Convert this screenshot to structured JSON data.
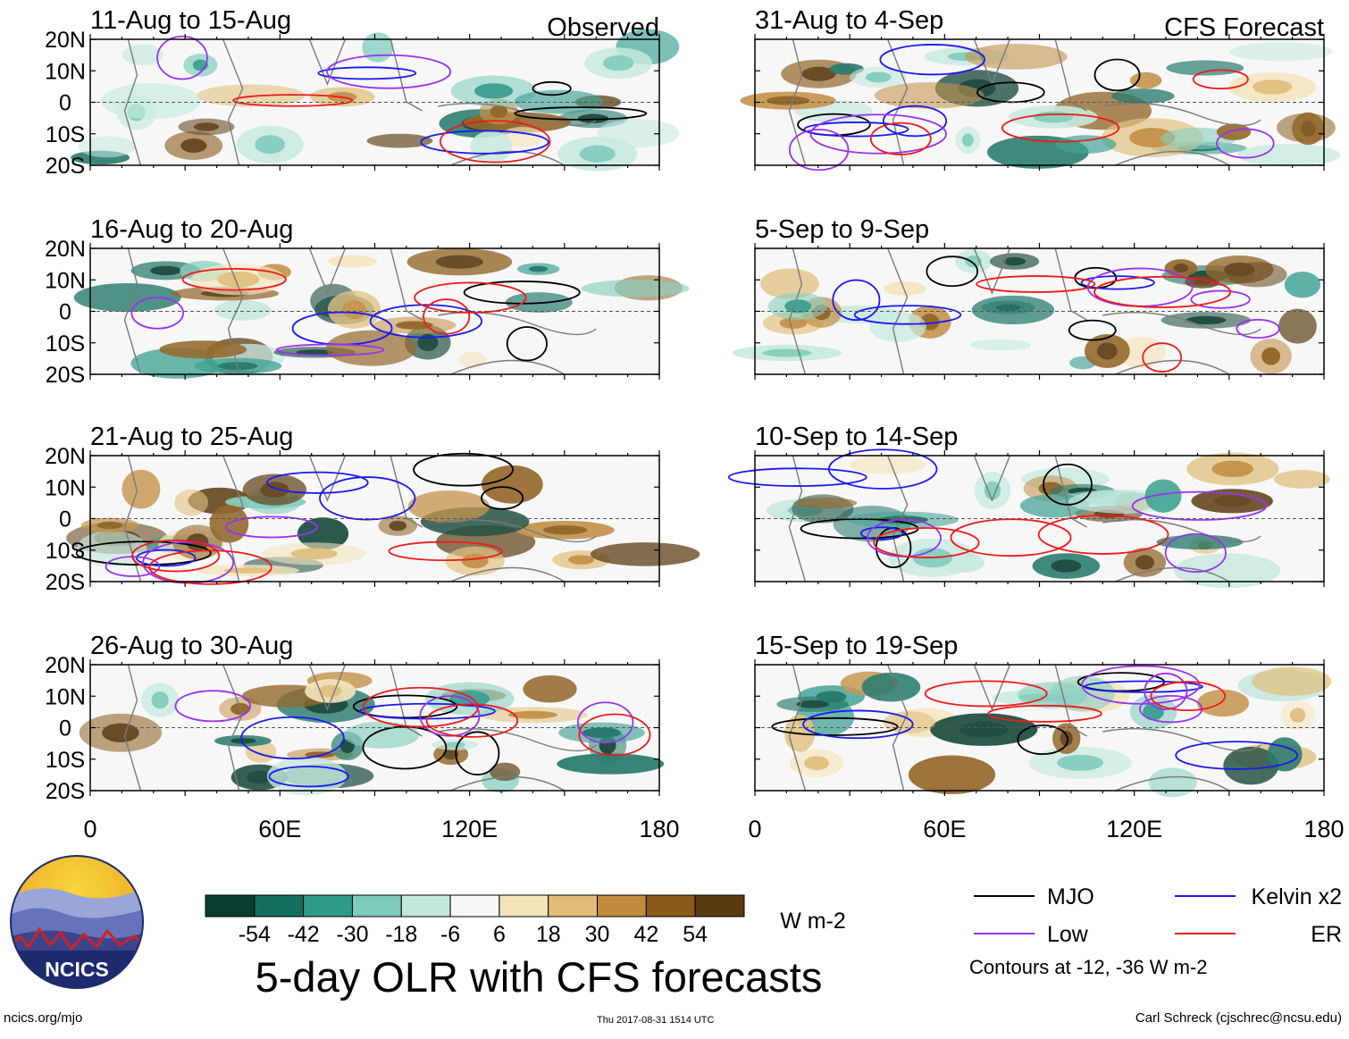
{
  "chart_data": {
    "type": "heatmap",
    "title": "5-day OLR with CFS forecasts",
    "units": "W m-2",
    "lon_ticks": [
      "0",
      "60E",
      "120E",
      "180"
    ],
    "lat_ticks": [
      "20N",
      "10N",
      "0",
      "10S",
      "20S"
    ],
    "xlim": [
      0,
      180
    ],
    "ylim": [
      -20,
      20
    ],
    "column_labels": [
      "Observed",
      "CFS Forecast"
    ],
    "panels": [
      {
        "period": "11-Aug to 15-Aug",
        "column": "Observed"
      },
      {
        "period": "16-Aug to 20-Aug",
        "column": "Observed"
      },
      {
        "period": "21-Aug to 25-Aug",
        "column": "Observed"
      },
      {
        "period": "26-Aug to 30-Aug",
        "column": "Observed"
      },
      {
        "period": "31-Aug to 4-Sep",
        "column": "CFS Forecast"
      },
      {
        "period": "5-Sep to 9-Sep",
        "column": "CFS Forecast"
      },
      {
        "period": "10-Sep to 14-Sep",
        "column": "CFS Forecast"
      },
      {
        "period": "15-Sep to 19-Sep",
        "column": "CFS Forecast"
      }
    ],
    "colorbar": {
      "labels": [
        "-54",
        "-42",
        "-30",
        "-18",
        "-6",
        "6",
        "18",
        "30",
        "42",
        "54"
      ],
      "colors": [
        "#0a3d30",
        "#136e60",
        "#2f9a8a",
        "#7ccbbb",
        "#c2e8de",
        "#f7f7f7",
        "#f4e3b8",
        "#dfbd77",
        "#c08a3c",
        "#8a5a18",
        "#5a3a10"
      ]
    },
    "legend": [
      {
        "label": "MJO",
        "color": "#000000"
      },
      {
        "label": "Kelvin x2",
        "color": "#1a1aee"
      },
      {
        "label": "Low",
        "color": "#9933ee"
      },
      {
        "label": "ER",
        "color": "#ee1a1a"
      }
    ],
    "contour_note": "Contours at -12, -36 W m-2"
  },
  "logo_text": "NCICS",
  "footer": {
    "url": "ncics.org/mjo",
    "timestamp": "Thu 2017-08-31 1514 UTC",
    "credit": "Carl Schreck (cjschrec@ncsu.edu)"
  }
}
